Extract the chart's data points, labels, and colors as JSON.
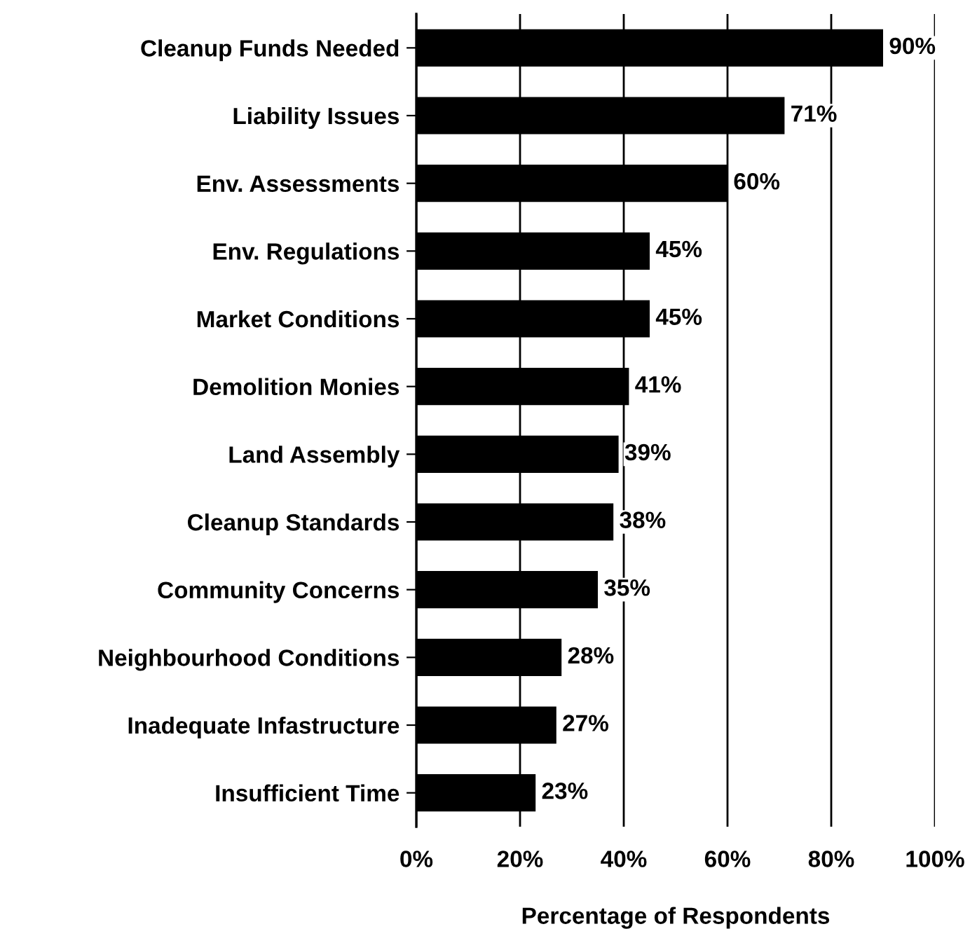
{
  "chart_data": {
    "type": "bar",
    "orientation": "horizontal",
    "xlabel": "Percentage of Respondents",
    "categories": [
      "Cleanup Funds Needed",
      "Liability Issues",
      "Env. Assessments",
      "Env. Regulations",
      "Market Conditions",
      "Demolition Monies",
      "Land Assembly",
      "Cleanup Standards",
      "Community Concerns",
      "Neighbourhood Conditions",
      "Inadequate Infastructure",
      "Insufficient Time"
    ],
    "values": [
      90,
      71,
      60,
      45,
      45,
      41,
      39,
      38,
      35,
      28,
      27,
      23
    ],
    "value_labels": [
      "90%",
      "71%",
      "60%",
      "45%",
      "45%",
      "41%",
      "39%",
      "38%",
      "35%",
      "28%",
      "27%",
      "23%"
    ],
    "color": "#000000",
    "xlim": [
      0,
      100
    ],
    "xticks": [
      {
        "value": 0,
        "label": "0%"
      },
      {
        "value": 20,
        "label": "20%"
      },
      {
        "value": 40,
        "label": "40%"
      },
      {
        "value": 60,
        "label": "60%"
      },
      {
        "value": 80,
        "label": "80%"
      },
      {
        "value": 100,
        "label": "100%"
      }
    ],
    "grid": "x"
  }
}
